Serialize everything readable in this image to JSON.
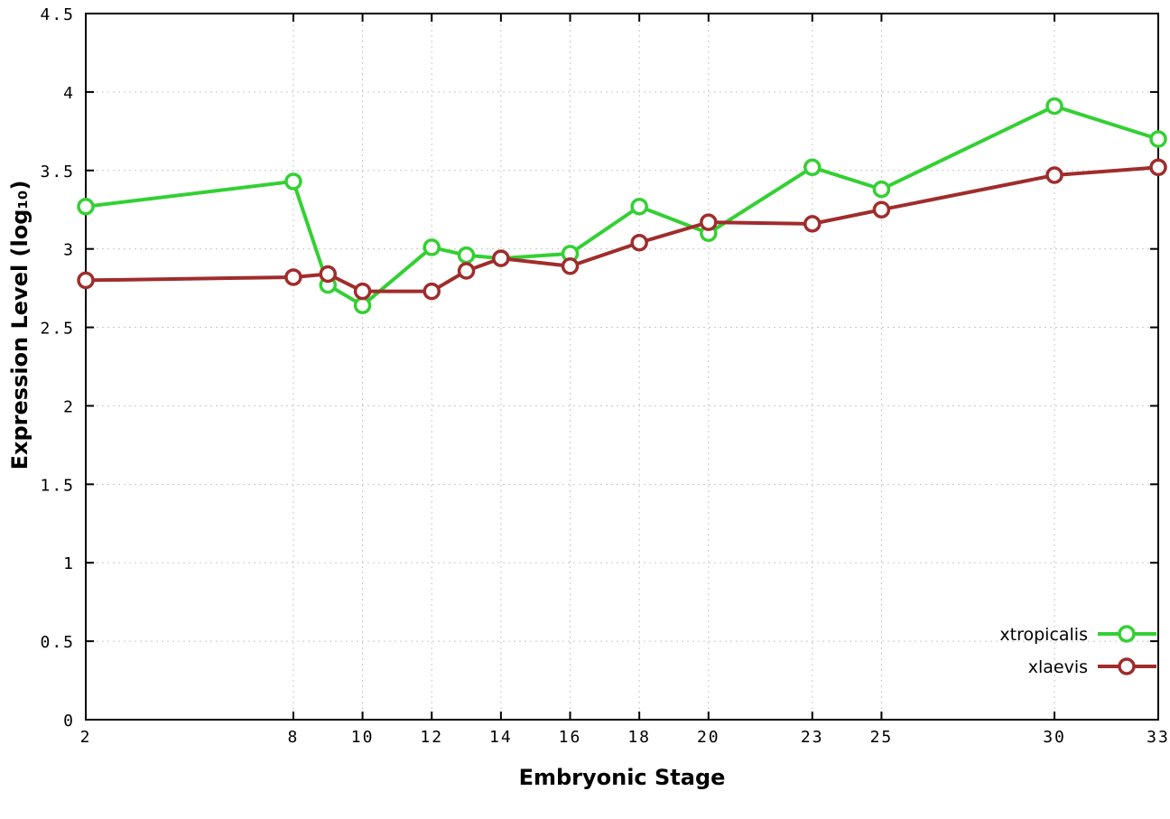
{
  "chart_data": {
    "type": "line",
    "title": "",
    "xlabel": "Embryonic Stage",
    "ylabel": "Expression Level (log₁₀)",
    "xlim": [
      2,
      33
    ],
    "ylim": [
      0,
      4.5
    ],
    "x_ticks": [
      2,
      8,
      10,
      12,
      14,
      16,
      18,
      20,
      23,
      25,
      30,
      33
    ],
    "y_ticks": [
      0,
      0.5,
      1,
      1.5,
      2,
      2.5,
      3,
      3.5,
      4,
      4.5
    ],
    "grid": true,
    "grid_color": "#c8c8c8",
    "background_color": "#ffffff",
    "legend_position": "bottom-right",
    "x": [
      2,
      8,
      9,
      10,
      12,
      13,
      14,
      16,
      18,
      20,
      23,
      25,
      30,
      33
    ],
    "series": [
      {
        "name": "xtropicalis",
        "color": "#33d033",
        "values": [
          3.27,
          3.43,
          2.77,
          2.64,
          3.01,
          2.96,
          2.94,
          2.97,
          3.27,
          3.1,
          3.52,
          3.38,
          3.91,
          3.7
        ]
      },
      {
        "name": "xlaevis",
        "color": "#a02c2c",
        "values": [
          2.8,
          2.82,
          2.84,
          2.73,
          2.73,
          2.86,
          2.94,
          2.89,
          3.04,
          3.17,
          3.16,
          3.25,
          3.47,
          3.52
        ]
      }
    ]
  }
}
